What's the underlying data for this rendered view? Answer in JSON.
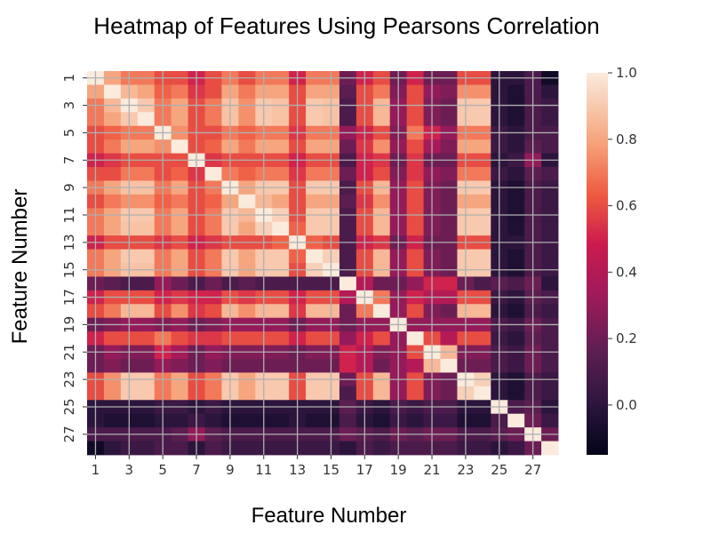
{
  "chart_data": {
    "type": "heatmap",
    "title": "Heatmap of Features Using Pearsons Correlation",
    "xlabel": "Feature Number",
    "ylabel": "Feature Number",
    "x_tick_labels": [
      "1",
      "3",
      "5",
      "7",
      "9",
      "11",
      "13",
      "15",
      "17",
      "19",
      "21",
      "23",
      "25",
      "27"
    ],
    "y_tick_labels": [
      "1",
      "3",
      "5",
      "7",
      "9",
      "11",
      "13",
      "15",
      "17",
      "19",
      "21",
      "23",
      "25",
      "27"
    ],
    "colorbar": {
      "range": [
        -0.15,
        1.0
      ],
      "ticks": [
        "0.0",
        "0.2",
        "0.4",
        "0.6",
        "0.8",
        "1.0"
      ],
      "colormap": "rocket"
    },
    "n_features": 28,
    "grid": true,
    "values": [
      [
        1.0,
        0.8,
        0.7,
        0.7,
        0.6,
        0.6,
        0.5,
        0.6,
        0.7,
        0.6,
        0.7,
        0.7,
        0.5,
        0.7,
        0.7,
        0.2,
        0.5,
        0.6,
        0.2,
        0.5,
        0.2,
        0.2,
        0.6,
        0.6,
        0.0,
        0.0,
        0.1,
        -0.1
      ],
      [
        0.8,
        1.0,
        0.85,
        0.8,
        0.65,
        0.7,
        0.55,
        0.6,
        0.8,
        0.7,
        0.8,
        0.8,
        0.6,
        0.8,
        0.8,
        0.15,
        0.6,
        0.7,
        0.25,
        0.6,
        0.3,
        0.25,
        0.75,
        0.75,
        0.0,
        -0.05,
        0.1,
        0.0
      ],
      [
        0.7,
        0.85,
        1.0,
        0.9,
        0.7,
        0.8,
        0.6,
        0.7,
        0.88,
        0.75,
        0.9,
        0.88,
        0.6,
        0.9,
        0.88,
        0.1,
        0.6,
        0.85,
        0.3,
        0.6,
        0.25,
        0.2,
        0.9,
        0.9,
        0.0,
        -0.05,
        0.1,
        0.05
      ],
      [
        0.7,
        0.8,
        0.9,
        1.0,
        0.7,
        0.8,
        0.6,
        0.7,
        0.88,
        0.75,
        0.9,
        0.88,
        0.6,
        0.9,
        0.88,
        0.1,
        0.6,
        0.85,
        0.3,
        0.6,
        0.25,
        0.2,
        0.9,
        0.9,
        0.0,
        -0.05,
        0.1,
        0.05
      ],
      [
        0.6,
        0.65,
        0.7,
        0.7,
        1.0,
        0.75,
        0.6,
        0.6,
        0.7,
        0.65,
        0.7,
        0.7,
        0.55,
        0.7,
        0.7,
        0.3,
        0.5,
        0.6,
        0.25,
        0.7,
        0.5,
        0.3,
        0.7,
        0.7,
        0.05,
        0.0,
        0.1,
        0.1
      ],
      [
        0.6,
        0.7,
        0.8,
        0.8,
        0.75,
        1.0,
        0.6,
        0.65,
        0.8,
        0.7,
        0.8,
        0.8,
        0.6,
        0.8,
        0.8,
        0.2,
        0.55,
        0.75,
        0.3,
        0.6,
        0.35,
        0.25,
        0.8,
        0.8,
        0.05,
        0.0,
        0.15,
        0.1
      ],
      [
        0.5,
        0.55,
        0.6,
        0.6,
        0.6,
        0.6,
        1.0,
        0.55,
        0.6,
        0.6,
        0.6,
        0.6,
        0.5,
        0.6,
        0.6,
        0.1,
        0.5,
        0.55,
        0.2,
        0.55,
        0.2,
        0.2,
        0.6,
        0.6,
        0.0,
        0.05,
        0.3,
        0.0
      ],
      [
        0.6,
        0.6,
        0.7,
        0.7,
        0.6,
        0.65,
        0.55,
        1.0,
        0.7,
        0.65,
        0.7,
        0.7,
        0.55,
        0.7,
        0.7,
        0.2,
        0.5,
        0.6,
        0.25,
        0.55,
        0.3,
        0.25,
        0.7,
        0.7,
        0.05,
        0.0,
        0.15,
        0.1
      ],
      [
        0.7,
        0.8,
        0.88,
        0.88,
        0.7,
        0.8,
        0.6,
        0.7,
        1.0,
        0.8,
        0.9,
        0.9,
        0.6,
        0.9,
        0.9,
        0.1,
        0.6,
        0.85,
        0.3,
        0.6,
        0.25,
        0.2,
        0.9,
        0.9,
        0.0,
        -0.05,
        0.1,
        0.05
      ],
      [
        0.6,
        0.7,
        0.75,
        0.75,
        0.65,
        0.7,
        0.6,
        0.65,
        0.8,
        1.0,
        0.85,
        0.8,
        0.6,
        0.8,
        0.8,
        0.15,
        0.55,
        0.75,
        0.3,
        0.6,
        0.25,
        0.2,
        0.8,
        0.8,
        0.0,
        -0.05,
        0.1,
        0.05
      ],
      [
        0.7,
        0.8,
        0.9,
        0.9,
        0.7,
        0.8,
        0.6,
        0.7,
        0.9,
        0.85,
        1.0,
        0.92,
        0.6,
        0.9,
        0.9,
        0.1,
        0.6,
        0.85,
        0.3,
        0.6,
        0.25,
        0.2,
        0.9,
        0.9,
        0.0,
        -0.05,
        0.1,
        0.05
      ],
      [
        0.7,
        0.8,
        0.88,
        0.88,
        0.7,
        0.8,
        0.6,
        0.7,
        0.9,
        0.8,
        0.92,
        1.0,
        0.65,
        0.9,
        0.9,
        0.1,
        0.6,
        0.85,
        0.3,
        0.6,
        0.25,
        0.2,
        0.9,
        0.9,
        0.0,
        -0.05,
        0.1,
        0.05
      ],
      [
        0.5,
        0.6,
        0.6,
        0.6,
        0.55,
        0.6,
        0.5,
        0.55,
        0.6,
        0.6,
        0.6,
        0.65,
        1.0,
        0.65,
        0.6,
        0.1,
        0.5,
        0.55,
        0.2,
        0.5,
        0.2,
        0.2,
        0.6,
        0.6,
        0.0,
        0.0,
        0.1,
        0.05
      ],
      [
        0.7,
        0.8,
        0.9,
        0.9,
        0.7,
        0.8,
        0.6,
        0.7,
        0.9,
        0.8,
        0.9,
        0.9,
        0.65,
        1.0,
        0.92,
        0.1,
        0.6,
        0.85,
        0.3,
        0.6,
        0.25,
        0.2,
        0.9,
        0.9,
        0.0,
        -0.05,
        0.1,
        0.05
      ],
      [
        0.7,
        0.8,
        0.88,
        0.88,
        0.7,
        0.8,
        0.6,
        0.7,
        0.9,
        0.8,
        0.9,
        0.9,
        0.6,
        0.92,
        1.0,
        0.1,
        0.6,
        0.85,
        0.3,
        0.6,
        0.25,
        0.2,
        0.9,
        0.9,
        0.0,
        -0.05,
        0.1,
        0.05
      ],
      [
        0.2,
        0.15,
        0.1,
        0.1,
        0.3,
        0.2,
        0.1,
        0.2,
        0.1,
        0.15,
        0.1,
        0.1,
        0.1,
        0.1,
        0.1,
        1.0,
        0.4,
        0.2,
        0.2,
        0.3,
        0.5,
        0.5,
        0.2,
        0.1,
        0.15,
        0.1,
        0.2,
        0.0
      ],
      [
        0.5,
        0.6,
        0.6,
        0.6,
        0.5,
        0.55,
        0.5,
        0.5,
        0.6,
        0.55,
        0.6,
        0.6,
        0.5,
        0.6,
        0.6,
        0.4,
        1.0,
        0.7,
        0.3,
        0.5,
        0.4,
        0.4,
        0.6,
        0.6,
        0.05,
        0.0,
        0.15,
        0.1
      ],
      [
        0.6,
        0.7,
        0.85,
        0.85,
        0.6,
        0.75,
        0.55,
        0.6,
        0.85,
        0.75,
        0.85,
        0.85,
        0.55,
        0.85,
        0.85,
        0.2,
        0.7,
        1.0,
        0.3,
        0.6,
        0.25,
        0.2,
        0.85,
        0.85,
        0.0,
        -0.05,
        0.1,
        0.05
      ],
      [
        0.2,
        0.25,
        0.3,
        0.3,
        0.25,
        0.3,
        0.2,
        0.25,
        0.3,
        0.3,
        0.3,
        0.3,
        0.2,
        0.3,
        0.3,
        0.2,
        0.3,
        0.3,
        1.0,
        0.3,
        0.3,
        0.3,
        0.3,
        0.3,
        0.1,
        0.05,
        0.2,
        0.1
      ],
      [
        0.5,
        0.6,
        0.6,
        0.6,
        0.7,
        0.6,
        0.55,
        0.55,
        0.6,
        0.6,
        0.6,
        0.6,
        0.5,
        0.6,
        0.6,
        0.3,
        0.5,
        0.6,
        0.3,
        1.0,
        0.6,
        0.4,
        0.6,
        0.6,
        0.05,
        0.0,
        0.15,
        0.1
      ],
      [
        0.2,
        0.3,
        0.25,
        0.25,
        0.5,
        0.35,
        0.2,
        0.3,
        0.25,
        0.25,
        0.25,
        0.25,
        0.2,
        0.25,
        0.25,
        0.5,
        0.4,
        0.25,
        0.3,
        0.6,
        1.0,
        0.85,
        0.25,
        0.25,
        0.1,
        0.05,
        0.2,
        0.1
      ],
      [
        0.2,
        0.25,
        0.2,
        0.2,
        0.3,
        0.25,
        0.2,
        0.25,
        0.2,
        0.2,
        0.2,
        0.2,
        0.2,
        0.2,
        0.2,
        0.5,
        0.4,
        0.2,
        0.3,
        0.4,
        0.85,
        1.0,
        0.2,
        0.2,
        0.1,
        0.05,
        0.2,
        0.1
      ],
      [
        0.6,
        0.75,
        0.9,
        0.9,
        0.7,
        0.8,
        0.6,
        0.7,
        0.9,
        0.8,
        0.9,
        0.9,
        0.6,
        0.9,
        0.9,
        0.2,
        0.6,
        0.85,
        0.3,
        0.6,
        0.25,
        0.2,
        1.0,
        0.92,
        0.0,
        -0.05,
        0.1,
        0.05
      ],
      [
        0.6,
        0.75,
        0.9,
        0.9,
        0.7,
        0.8,
        0.6,
        0.7,
        0.9,
        0.8,
        0.9,
        0.9,
        0.6,
        0.9,
        0.9,
        0.1,
        0.6,
        0.85,
        0.3,
        0.6,
        0.25,
        0.2,
        0.92,
        1.0,
        0.0,
        -0.05,
        0.1,
        0.05
      ],
      [
        0.0,
        0.0,
        0.0,
        0.0,
        0.05,
        0.05,
        0.0,
        0.05,
        0.0,
        0.0,
        0.0,
        0.0,
        0.0,
        0.0,
        0.0,
        0.15,
        0.05,
        0.0,
        0.1,
        0.05,
        0.1,
        0.1,
        0.0,
        0.0,
        1.0,
        0.1,
        0.15,
        0.0
      ],
      [
        0.0,
        -0.05,
        -0.05,
        -0.05,
        0.0,
        0.0,
        0.05,
        0.0,
        -0.05,
        -0.05,
        -0.05,
        -0.05,
        0.0,
        -0.05,
        -0.05,
        0.1,
        0.0,
        -0.05,
        0.05,
        0.0,
        0.05,
        0.05,
        -0.05,
        -0.05,
        0.1,
        1.0,
        0.2,
        0.05
      ],
      [
        0.1,
        0.1,
        0.1,
        0.1,
        0.1,
        0.15,
        0.3,
        0.15,
        0.1,
        0.1,
        0.1,
        0.1,
        0.1,
        0.1,
        0.1,
        0.2,
        0.15,
        0.1,
        0.2,
        0.15,
        0.2,
        0.2,
        0.1,
        0.1,
        0.15,
        0.2,
        1.0,
        0.2
      ],
      [
        -0.1,
        0.0,
        0.05,
        0.05,
        0.1,
        0.1,
        0.0,
        0.1,
        0.05,
        0.05,
        0.05,
        0.05,
        0.05,
        0.05,
        0.05,
        0.0,
        0.1,
        0.05,
        0.1,
        0.1,
        0.1,
        0.1,
        0.05,
        0.05,
        0.0,
        0.05,
        0.2,
        1.0
      ]
    ]
  }
}
